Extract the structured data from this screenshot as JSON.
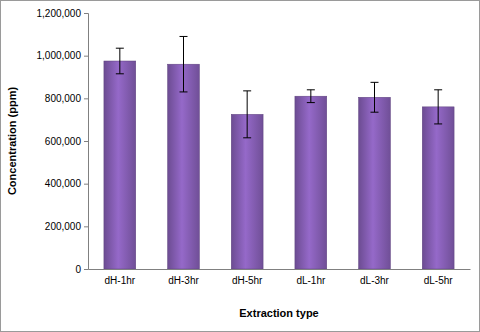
{
  "chart_data": {
    "type": "bar",
    "x_label": "Extraction type",
    "y_label": "Concentration (ppm)",
    "categories": [
      "dH-1hr",
      "dH-3hr",
      "dH-5hr",
      "dL-1hr",
      "dL-3hr",
      "dL-5hr"
    ],
    "values": [
      975000,
      960000,
      725000,
      810000,
      805000,
      760000
    ],
    "errors": [
      60000,
      130000,
      110000,
      30000,
      70000,
      80000
    ],
    "color": "#7d58a8",
    "ylim": [
      0,
      1200000
    ],
    "yticks": [
      0,
      {
        "value": 200000,
        "label": "200,000"
      },
      {
        "value": 400000,
        "label": "400,000"
      },
      {
        "value": 600000,
        "label": "600,000"
      },
      {
        "value": 800000,
        "label": "800,000"
      },
      {
        "value": 1000000,
        "label": "1,000,000"
      },
      {
        "value": 1200000,
        "label": "1,200,000"
      }
    ],
    "grid": false
  }
}
